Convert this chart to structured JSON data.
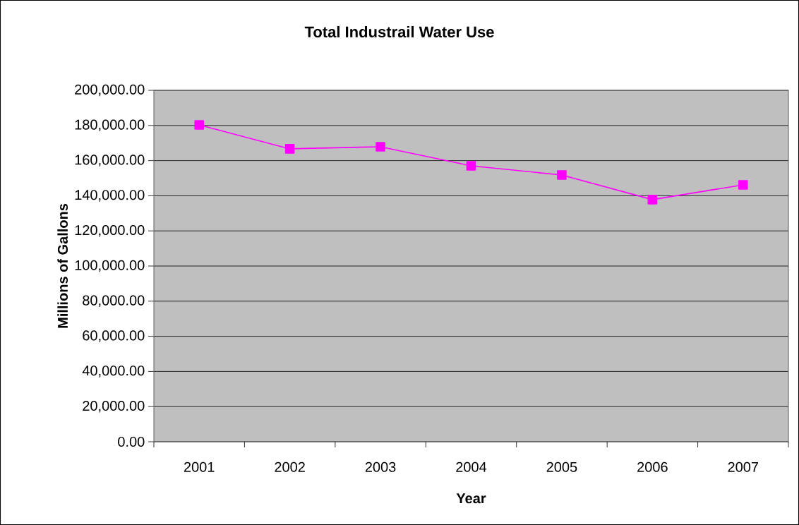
{
  "chart_data": {
    "type": "line",
    "title": "Total Industrail Water Use",
    "xlabel": "Year",
    "ylabel": "Millions of Gallons",
    "categories": [
      "2001",
      "2002",
      "2003",
      "2004",
      "2005",
      "2006",
      "2007"
    ],
    "series": [
      {
        "color": "#ff00ff",
        "values": [
          180300,
          166700,
          167900,
          157000,
          151800,
          137800,
          146200
        ]
      }
    ],
    "ylim": [
      0,
      200000
    ],
    "yticks": [
      {
        "value": 0,
        "label": "0.00"
      },
      {
        "value": 20000,
        "label": "20,000.00"
      },
      {
        "value": 40000,
        "label": "40,000.00"
      },
      {
        "value": 60000,
        "label": "60,000.00"
      },
      {
        "value": 80000,
        "label": "80,000.00"
      },
      {
        "value": 100000,
        "label": "100,000.00"
      },
      {
        "value": 120000,
        "label": "120,000.00"
      },
      {
        "value": 140000,
        "label": "140,000.00"
      },
      {
        "value": 160000,
        "label": "160,000.00"
      },
      {
        "value": 180000,
        "label": "180,000.00"
      },
      {
        "value": 200000,
        "label": "200,000.00"
      }
    ],
    "grid": "y",
    "marker": "square",
    "line_style": "solid"
  }
}
